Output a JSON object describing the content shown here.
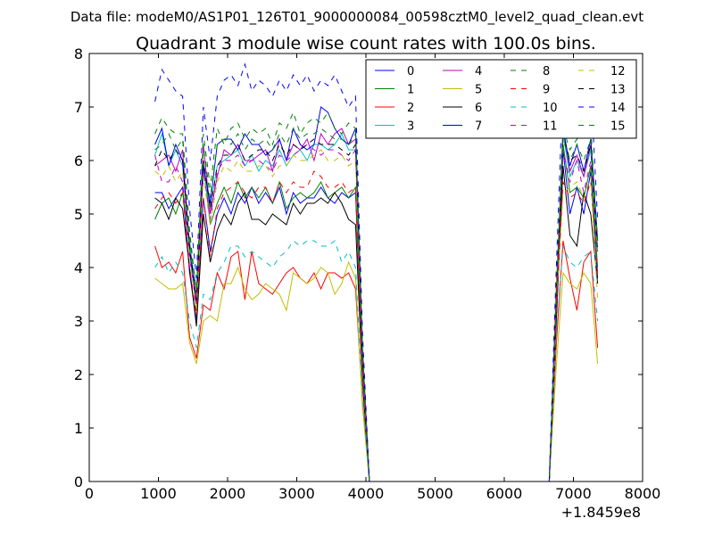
{
  "chart_data": {
    "type": "line",
    "supertitle": "Data file: modeM0/AS1P01_126T01_9000000084_00598cztM0_level2_quad_clean.evt",
    "title": "Quadrant 3 module wise count rates with 100.0s bins.",
    "xlabel": "",
    "ylabel": "",
    "x_offset_label": "+1.8459e8",
    "xlim": [
      0,
      8000
    ],
    "ylim": [
      0,
      8
    ],
    "x_ticks": [
      0,
      1000,
      2000,
      3000,
      4000,
      5000,
      6000,
      7000,
      8000
    ],
    "y_ticks": [
      0,
      1,
      2,
      3,
      4,
      5,
      6,
      7,
      8
    ],
    "legend_position": "top-right",
    "grid": false,
    "x": [
      950,
      1050,
      1150,
      1250,
      1350,
      1450,
      1550,
      1650,
      1750,
      1850,
      1950,
      2050,
      2150,
      2250,
      2350,
      2450,
      2550,
      2650,
      2750,
      2850,
      2950,
      3050,
      3150,
      3250,
      3350,
      3450,
      3550,
      3650,
      3750,
      3850,
      3950,
      4050,
      4150,
      6650,
      6750,
      6850,
      6950,
      7050,
      7150,
      7250,
      7350
    ],
    "series": [
      {
        "name": "0",
        "color": "#0000ff",
        "dash": "solid",
        "values": [
          5.4,
          5.4,
          5.1,
          5.3,
          5.5,
          3.9,
          3.0,
          5.3,
          4.3,
          5.0,
          5.3,
          5.0,
          5.4,
          5.2,
          5.5,
          5.2,
          5.4,
          5.2,
          5.5,
          5.0,
          5.4,
          5.2,
          5.3,
          5.3,
          5.5,
          5.3,
          5.2,
          5.4,
          5.3,
          5.4,
          2.0,
          0,
          0,
          0,
          3.0,
          6.2,
          5.0,
          5.5,
          5.0,
          5.8,
          3.8
        ]
      },
      {
        "name": "1",
        "color": "#008000",
        "dash": "solid",
        "values": [
          4.9,
          5.2,
          5.3,
          5.0,
          5.4,
          4.5,
          3.2,
          6.0,
          4.8,
          5.2,
          5.5,
          5.2,
          5.6,
          5.3,
          5.5,
          5.3,
          5.5,
          5.2,
          5.6,
          5.1,
          5.3,
          5.4,
          5.3,
          5.4,
          5.6,
          5.3,
          5.4,
          5.5,
          5.3,
          5.5,
          2.0,
          0,
          0,
          0,
          3.0,
          6.3,
          5.4,
          5.5,
          5.3,
          5.9,
          4.0
        ]
      },
      {
        "name": "2",
        "color": "#ff0000",
        "dash": "solid",
        "values": [
          4.4,
          4.0,
          4.1,
          3.9,
          4.3,
          2.7,
          2.3,
          3.3,
          3.2,
          3.9,
          3.6,
          4.2,
          4.3,
          3.4,
          4.3,
          3.7,
          3.6,
          3.5,
          3.7,
          3.9,
          4.0,
          3.8,
          3.7,
          3.9,
          3.6,
          3.9,
          3.9,
          3.8,
          3.9,
          3.6,
          1.5,
          0,
          0,
          0,
          2.5,
          4.5,
          3.8,
          3.2,
          4.1,
          4.3,
          2.5
        ]
      },
      {
        "name": "3",
        "color": "#00bfbf",
        "dash": "solid",
        "values": [
          6.1,
          6.5,
          5.9,
          6.2,
          5.9,
          4.4,
          3.6,
          5.8,
          5.1,
          5.9,
          6.0,
          6.1,
          6.2,
          5.9,
          6.1,
          5.8,
          6.0,
          5.9,
          6.2,
          5.9,
          6.1,
          6.2,
          6.0,
          6.3,
          6.3,
          6.2,
          6.3,
          6.5,
          6.2,
          6.2,
          2.3,
          0,
          0,
          0,
          3.3,
          6.5,
          5.7,
          6.0,
          5.7,
          6.2,
          4.3
        ]
      },
      {
        "name": "4",
        "color": "#bf00bf",
        "dash": "solid",
        "values": [
          5.9,
          6.0,
          6.1,
          5.8,
          6.2,
          4.3,
          3.4,
          6.3,
          5.0,
          5.7,
          6.2,
          6.1,
          6.3,
          6.0,
          6.0,
          6.1,
          6.2,
          5.8,
          6.4,
          6.0,
          6.3,
          6.2,
          6.4,
          6.0,
          6.5,
          6.3,
          6.5,
          6.6,
          6.3,
          6.4,
          2.3,
          0,
          0,
          0,
          3.2,
          6.6,
          5.8,
          6.1,
          5.7,
          6.3,
          4.5
        ]
      },
      {
        "name": "5",
        "color": "#bfbf00",
        "dash": "solid",
        "values": [
          3.8,
          3.7,
          3.6,
          3.6,
          3.7,
          2.6,
          2.2,
          3.0,
          3.1,
          3.0,
          3.7,
          3.7,
          4.0,
          3.6,
          3.4,
          3.5,
          3.7,
          3.6,
          3.5,
          3.2,
          3.9,
          3.8,
          3.7,
          3.8,
          4.0,
          3.9,
          3.5,
          3.7,
          4.1,
          3.8,
          1.4,
          0,
          0,
          0,
          2.1,
          3.9,
          3.7,
          3.6,
          3.9,
          3.7,
          2.2
        ]
      },
      {
        "name": "6",
        "color": "#000000",
        "dash": "solid",
        "values": [
          5.3,
          5.2,
          4.9,
          5.3,
          5.1,
          4.0,
          2.9,
          5.0,
          4.1,
          4.7,
          5.0,
          4.8,
          5.2,
          5.4,
          4.9,
          4.9,
          4.8,
          5.0,
          4.9,
          4.8,
          5.2,
          5.0,
          5.2,
          5.2,
          5.3,
          5.2,
          5.4,
          5.2,
          4.9,
          4.8,
          1.9,
          0,
          0,
          0,
          2.9,
          5.9,
          4.6,
          4.4,
          5.4,
          5.0,
          3.7
        ]
      },
      {
        "name": "7",
        "color": "#0000ff",
        "dash": "solid",
        "values": [
          6.3,
          6.6,
          5.9,
          6.3,
          6.0,
          4.3,
          3.3,
          5.9,
          5.2,
          6.3,
          6.4,
          6.4,
          6.2,
          6.5,
          6.3,
          6.3,
          6.1,
          6.2,
          6.4,
          6.0,
          6.6,
          6.3,
          6.2,
          6.3,
          7.0,
          6.9,
          6.6,
          6.4,
          6.3,
          6.6,
          2.5,
          0,
          0,
          0,
          3.4,
          6.6,
          5.9,
          6.3,
          5.8,
          6.4,
          4.5
        ]
      },
      {
        "name": "8",
        "color": "#008000",
        "dash": "dashed",
        "values": [
          6.5,
          6.8,
          6.6,
          6.5,
          6.5,
          4.7,
          3.5,
          6.5,
          5.5,
          6.6,
          6.3,
          6.6,
          6.7,
          6.4,
          6.6,
          6.5,
          6.6,
          6.3,
          6.7,
          6.6,
          6.9,
          6.5,
          6.7,
          6.8,
          6.7,
          6.9,
          6.6,
          6.5,
          6.7,
          6.6,
          2.6,
          0,
          0,
          0,
          3.6,
          6.6,
          6.2,
          6.4,
          6.5,
          6.6,
          4.5
        ]
      },
      {
        "name": "9",
        "color": "#ff0000",
        "dash": "dashed",
        "values": [
          5.1,
          5.3,
          5.4,
          5.2,
          5.4,
          4.0,
          3.1,
          5.3,
          4.2,
          5.1,
          5.4,
          5.5,
          5.6,
          5.4,
          5.3,
          5.5,
          5.5,
          5.2,
          5.6,
          5.4,
          5.6,
          5.5,
          5.5,
          5.8,
          5.7,
          5.5,
          5.5,
          5.6,
          5.4,
          5.5,
          2.0,
          0,
          0,
          0,
          3.1,
          5.6,
          5.3,
          5.4,
          5.2,
          5.6,
          3.9
        ]
      },
      {
        "name": "10",
        "color": "#00bfbf",
        "dash": "dashed",
        "values": [
          4.0,
          4.2,
          3.9,
          4.1,
          3.9,
          3.0,
          2.5,
          3.5,
          3.4,
          3.9,
          4.1,
          4.4,
          4.4,
          4.2,
          4.3,
          4.2,
          4.1,
          4.0,
          4.2,
          4.3,
          4.5,
          4.4,
          4.5,
          4.5,
          4.4,
          4.4,
          4.5,
          4.1,
          4.3,
          4.0,
          1.6,
          0,
          0,
          0,
          2.7,
          4.4,
          4.1,
          4.0,
          4.2,
          4.3,
          3.0
        ]
      },
      {
        "name": "11",
        "color": "#bf00bf",
        "dash": "dashed",
        "values": [
          6.1,
          5.6,
          5.6,
          5.9,
          5.6,
          4.2,
          3.3,
          5.8,
          4.9,
          5.8,
          6.0,
          6.0,
          6.1,
          5.9,
          6.0,
          6.0,
          5.9,
          5.8,
          6.1,
          6.0,
          6.1,
          6.2,
          6.3,
          6.2,
          6.1,
          6.2,
          6.2,
          6.1,
          6.0,
          6.2,
          2.3,
          0,
          0,
          0,
          3.4,
          6.2,
          5.6,
          6.0,
          5.4,
          6.0,
          4.3
        ]
      },
      {
        "name": "12",
        "color": "#bfbf00",
        "dash": "dashed",
        "values": [
          5.8,
          5.7,
          5.9,
          5.6,
          5.8,
          4.2,
          3.2,
          5.7,
          4.8,
          5.6,
          5.9,
          5.8,
          6.0,
          5.8,
          5.8,
          5.9,
          5.9,
          5.7,
          5.9,
          5.9,
          6.1,
          6.0,
          6.0,
          6.1,
          6.2,
          6.0,
          6.0,
          6.1,
          5.9,
          6.0,
          2.3,
          0,
          0,
          0,
          3.3,
          5.4,
          5.5,
          5.6,
          5.3,
          5.7,
          3.4
        ]
      },
      {
        "name": "13",
        "color": "#000000",
        "dash": "dashed",
        "values": [
          5.9,
          6.2,
          6.0,
          6.2,
          6.0,
          4.4,
          3.4,
          6.0,
          5.1,
          5.9,
          6.1,
          6.1,
          6.3,
          6.0,
          6.1,
          6.2,
          6.2,
          6.0,
          6.3,
          6.1,
          6.3,
          6.2,
          6.3,
          6.4,
          6.3,
          6.3,
          6.3,
          6.2,
          6.1,
          6.3,
          2.4,
          0,
          0,
          0,
          3.4,
          6.5,
          6.0,
          6.1,
          5.8,
          6.3,
          4.3
        ]
      },
      {
        "name": "14",
        "color": "#0000ff",
        "dash": "dashed",
        "values": [
          7.1,
          7.7,
          7.5,
          7.3,
          7.2,
          5.1,
          3.8,
          7.0,
          6.0,
          7.2,
          7.5,
          7.6,
          7.4,
          7.8,
          7.3,
          7.5,
          7.4,
          7.2,
          7.5,
          7.3,
          7.6,
          7.4,
          7.6,
          7.3,
          7.5,
          7.4,
          7.6,
          7.3,
          7.0,
          7.2,
          2.8,
          0,
          0,
          0,
          3.9,
          7.5,
          6.8,
          7.3,
          6.8,
          7.4,
          4.9
        ]
      },
      {
        "name": "15",
        "color": "#008000",
        "dash": "dashed",
        "values": [
          6.2,
          6.3,
          6.5,
          6.2,
          6.4,
          4.6,
          3.5,
          6.3,
          5.3,
          6.3,
          6.4,
          6.3,
          6.5,
          6.2,
          6.4,
          6.3,
          6.4,
          6.2,
          6.5,
          6.3,
          6.6,
          6.4,
          6.5,
          6.5,
          6.6,
          6.5,
          6.4,
          6.4,
          6.3,
          6.5,
          2.5,
          0,
          0,
          0,
          3.5,
          6.4,
          6.0,
          6.3,
          6.0,
          6.4,
          4.4
        ]
      }
    ]
  }
}
